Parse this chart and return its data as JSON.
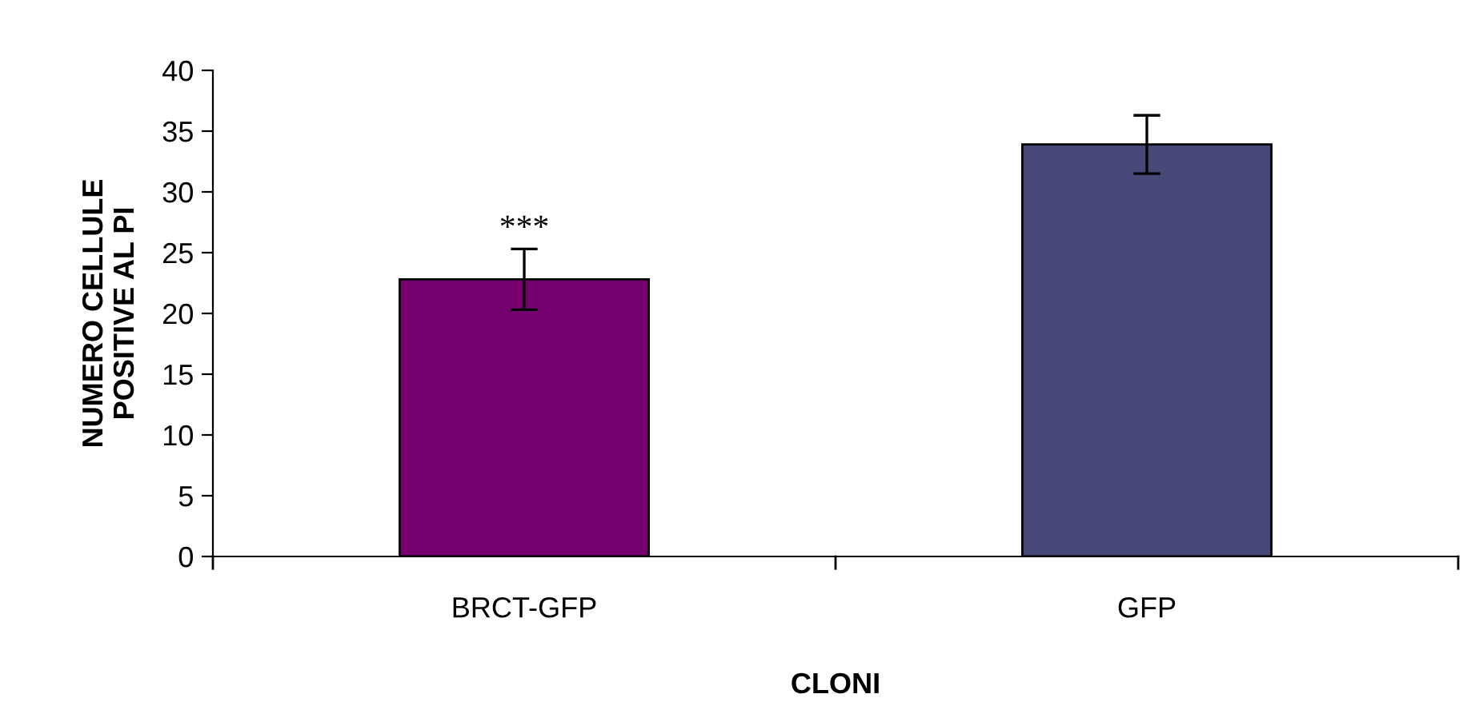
{
  "chart_data": {
    "type": "bar",
    "xlabel": "CLONI",
    "ylabel": "NUMERO CELLULE\nPOSITIVE AL PI",
    "categories": [
      "BRCT-GFP",
      "GFP"
    ],
    "values": [
      22.8,
      33.9
    ],
    "errors": [
      2.5,
      2.4
    ],
    "colors": [
      "#770070",
      "#464878"
    ],
    "ylim": [
      0,
      40
    ],
    "yticks": [
      0,
      5,
      10,
      15,
      20,
      25,
      30,
      35,
      40
    ],
    "annotations": [
      {
        "text": "***",
        "x": "BRCT-GFP",
        "y": 25.3
      }
    ],
    "grid": false,
    "legend": false
  }
}
